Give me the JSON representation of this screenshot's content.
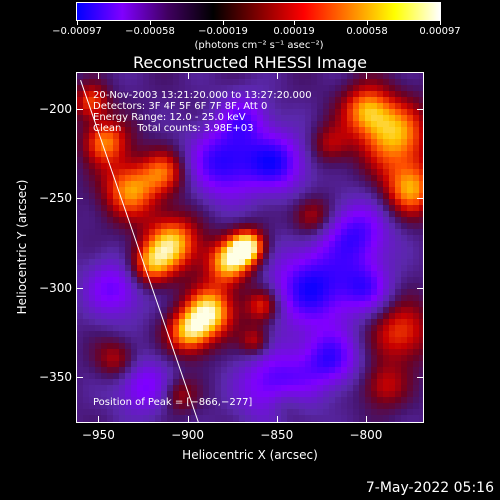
{
  "chart_data": {
    "type": "heatmap",
    "title": "Reconstructed RHESSI Image",
    "xlabel": "Heliocentric X (arcsec)",
    "ylabel": "Heliocentric Y (arcsec)",
    "xlim": [
      -962,
      -768
    ],
    "ylim": [
      -375,
      -180
    ],
    "x_ticks": [
      -950,
      -900,
      -850,
      -800
    ],
    "y_ticks": [
      -200,
      -250,
      -300,
      -350
    ],
    "x_tick_labels": [
      "−950",
      "−900",
      "−850",
      "−800"
    ],
    "y_tick_labels": [
      "−200",
      "−250",
      "−300",
      "−350"
    ],
    "colorbar": {
      "min": -0.00097,
      "max": 0.00097,
      "tick_values": [
        -0.00097,
        -0.00058,
        -0.00019,
        0.00019,
        0.00058,
        0.00097
      ],
      "tick_labels": [
        "−0.00097",
        "−0.00058",
        "−0.00019",
        "0.00019",
        "0.00058",
        "0.00097"
      ],
      "unit": "(photons cm⁻² s⁻¹ asec⁻²)",
      "colors": [
        "#0000ff",
        "#8000ff",
        "#400060",
        "#000000",
        "#800000",
        "#ff0000",
        "#ff8000",
        "#ffff00",
        "#ffffff"
      ]
    },
    "annotations": [
      "20-Nov-2003 13:21:20.000 to 13:27:20.000",
      "Detectors: 3F 4F 5F 6F 7F 8F, Att 0",
      "Energy Range: 12.0 - 25.0 keV",
      "Clean     Total counts: 3.98E+03"
    ],
    "peak_label": "Position of Peak = [−866,−277]",
    "peak": {
      "x": -866,
      "y": -277
    },
    "limb_line": [
      {
        "x": -960,
        "y": -184
      },
      {
        "x": -894,
        "y": -375
      }
    ],
    "bright_sources": [
      {
        "x": -866,
        "y": -277,
        "r": 7,
        "level": 1.0
      },
      {
        "x": -877,
        "y": -286,
        "r": 9,
        "level": 0.85
      },
      {
        "x": -887,
        "y": -313,
        "r": 10,
        "level": 0.9
      },
      {
        "x": -899,
        "y": -325,
        "r": 9,
        "level": 0.8
      },
      {
        "x": -908,
        "y": -275,
        "r": 11,
        "level": 0.85
      },
      {
        "x": -922,
        "y": -288,
        "r": 9,
        "level": 0.7
      },
      {
        "x": -932,
        "y": -245,
        "r": 12,
        "level": 0.75
      },
      {
        "x": -946,
        "y": -218,
        "r": 9,
        "level": 0.7
      },
      {
        "x": -954,
        "y": -196,
        "r": 7,
        "level": 0.6
      },
      {
        "x": -912,
        "y": -235,
        "r": 9,
        "level": 0.55
      },
      {
        "x": -858,
        "y": -310,
        "r": 7,
        "level": 0.6
      },
      {
        "x": -862,
        "y": -330,
        "r": 6,
        "level": 0.5
      },
      {
        "x": -830,
        "y": -260,
        "r": 8,
        "level": 0.5
      },
      {
        "x": -784,
        "y": -215,
        "r": 14,
        "level": 0.8
      },
      {
        "x": -800,
        "y": -200,
        "r": 10,
        "level": 0.65
      },
      {
        "x": -775,
        "y": -245,
        "r": 11,
        "level": 0.75
      },
      {
        "x": -780,
        "y": -325,
        "r": 12,
        "level": 0.6
      },
      {
        "x": -790,
        "y": -355,
        "r": 9,
        "level": 0.45
      },
      {
        "x": -820,
        "y": -220,
        "r": 8,
        "level": 0.4
      },
      {
        "x": -940,
        "y": -340,
        "r": 8,
        "level": 0.45
      },
      {
        "x": -905,
        "y": -360,
        "r": 7,
        "level": 0.4
      },
      {
        "x": -845,
        "y": -365,
        "r": 8,
        "level": 0.4
      }
    ],
    "dark_regions": [
      {
        "x": -880,
        "y": -230,
        "r": 14,
        "level": -0.8
      },
      {
        "x": -850,
        "y": -230,
        "r": 12,
        "level": -0.75
      },
      {
        "x": -830,
        "y": -300,
        "r": 16,
        "level": -0.85
      },
      {
        "x": -805,
        "y": -270,
        "r": 13,
        "level": -0.7
      },
      {
        "x": -850,
        "y": -355,
        "r": 14,
        "level": -0.75
      },
      {
        "x": -940,
        "y": -300,
        "r": 12,
        "level": -0.6
      },
      {
        "x": -820,
        "y": -340,
        "r": 11,
        "level": -0.7
      },
      {
        "x": -868,
        "y": -205,
        "r": 10,
        "level": -0.5
      },
      {
        "x": -925,
        "y": -355,
        "r": 11,
        "level": -0.55
      },
      {
        "x": -800,
        "y": -300,
        "r": 10,
        "level": -0.55
      }
    ]
  },
  "footer": {
    "timestamp": "7-May-2022 05:16"
  }
}
